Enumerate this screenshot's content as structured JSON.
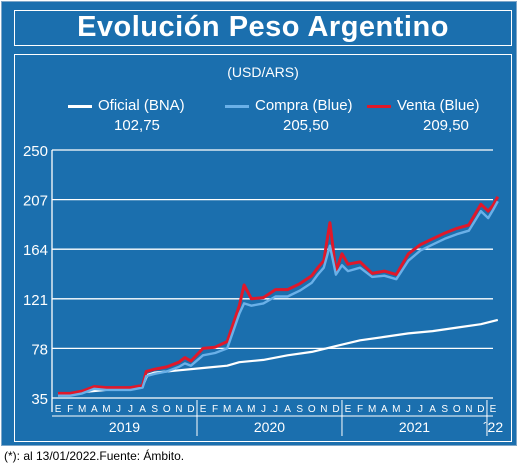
{
  "title": "Evolución Peso Argentino",
  "units": "(USD/ARS)",
  "footnote": "(*): al 13/01/2022.Fuente: Ámbito.",
  "colors": {
    "background": "#1b6fae",
    "oficial": "#ffffff",
    "compra": "#6ab0e8",
    "venta": "#e0182a",
    "grid": "#ffffff"
  },
  "legend": [
    {
      "name": "Oficial (BNA)",
      "value": "102,75",
      "color_key": "oficial"
    },
    {
      "name": "Compra (Blue)",
      "value": "205,50",
      "color_key": "compra"
    },
    {
      "name": "Venta (Blue)",
      "value": "209,50",
      "color_key": "venta"
    }
  ],
  "chart_data": {
    "type": "line",
    "ylim": [
      35,
      250
    ],
    "yticks": [
      35,
      78,
      121,
      164,
      207,
      250
    ],
    "grid": true,
    "legend_position": "top",
    "month_labels": [
      "E",
      "F",
      "M",
      "A",
      "M",
      "J",
      "J",
      "A",
      "S",
      "O",
      "N",
      "D",
      "E",
      "F",
      "M",
      "A",
      "M",
      "J",
      "J",
      "A",
      "S",
      "O",
      "N",
      "D",
      "E",
      "F",
      "M",
      "A",
      "M",
      "J",
      "J",
      "A",
      "S",
      "O",
      "N",
      "D",
      "E"
    ],
    "year_labels": [
      "2019",
      "2020",
      "2021",
      "´22"
    ],
    "x_unit": "months since Jan 2019",
    "series": [
      {
        "name": "Oficial (BNA)",
        "key": "oficial",
        "points": [
          [
            0,
            38
          ],
          [
            2,
            40
          ],
          [
            4,
            42
          ],
          [
            6,
            43
          ],
          [
            7,
            45
          ],
          [
            7.4,
            55
          ],
          [
            8,
            57
          ],
          [
            10,
            59
          ],
          [
            12,
            61
          ],
          [
            14,
            63
          ],
          [
            15,
            66
          ],
          [
            17,
            68
          ],
          [
            19,
            72
          ],
          [
            21,
            75
          ],
          [
            23,
            80
          ],
          [
            25,
            85
          ],
          [
            27,
            88
          ],
          [
            29,
            91
          ],
          [
            31,
            93
          ],
          [
            33,
            96
          ],
          [
            35,
            99
          ],
          [
            36.4,
            102.75
          ]
        ]
      },
      {
        "name": "Compra (Blue)",
        "key": "compra",
        "points": [
          [
            0,
            37
          ],
          [
            1,
            37
          ],
          [
            2,
            39
          ],
          [
            3,
            43
          ],
          [
            4,
            42
          ],
          [
            5,
            42
          ],
          [
            6,
            42
          ],
          [
            7,
            44
          ],
          [
            7.3,
            54
          ],
          [
            8,
            56
          ],
          [
            9,
            58
          ],
          [
            10,
            62
          ],
          [
            10.5,
            65
          ],
          [
            11,
            63
          ],
          [
            12,
            72
          ],
          [
            13,
            74
          ],
          [
            14,
            78
          ],
          [
            15,
            108
          ],
          [
            15.4,
            117
          ],
          [
            16,
            115
          ],
          [
            17,
            117
          ],
          [
            18,
            123
          ],
          [
            19,
            123
          ],
          [
            20,
            128
          ],
          [
            21,
            135
          ],
          [
            21.5,
            142
          ],
          [
            22,
            148
          ],
          [
            22.5,
            167
          ],
          [
            23,
            142
          ],
          [
            23.5,
            150
          ],
          [
            24,
            145
          ],
          [
            25,
            148
          ],
          [
            26,
            140
          ],
          [
            27,
            141
          ],
          [
            28,
            138
          ],
          [
            29,
            154
          ],
          [
            30,
            163
          ],
          [
            31,
            168
          ],
          [
            32,
            173
          ],
          [
            33,
            177
          ],
          [
            34,
            180
          ],
          [
            35,
            197
          ],
          [
            35.6,
            191
          ],
          [
            36,
            198
          ],
          [
            36.4,
            205.5
          ]
        ]
      },
      {
        "name": "Venta (Blue)",
        "key": "venta",
        "points": [
          [
            0,
            39
          ],
          [
            1,
            39
          ],
          [
            2,
            41
          ],
          [
            3,
            45
          ],
          [
            4,
            44
          ],
          [
            5,
            44
          ],
          [
            6,
            44
          ],
          [
            7,
            46
          ],
          [
            7.3,
            58
          ],
          [
            8,
            60
          ],
          [
            9,
            62
          ],
          [
            10,
            66
          ],
          [
            10.5,
            70
          ],
          [
            11,
            67
          ],
          [
            12,
            78
          ],
          [
            13,
            79
          ],
          [
            14,
            84
          ],
          [
            15,
            115
          ],
          [
            15.4,
            133
          ],
          [
            16,
            121
          ],
          [
            17,
            122
          ],
          [
            18,
            129
          ],
          [
            19,
            129
          ],
          [
            20,
            134
          ],
          [
            21,
            141
          ],
          [
            21.5,
            148
          ],
          [
            22,
            154
          ],
          [
            22.5,
            187
          ],
          [
            23,
            145
          ],
          [
            23.5,
            160
          ],
          [
            24,
            151
          ],
          [
            25,
            153
          ],
          [
            26,
            143
          ],
          [
            27,
            145
          ],
          [
            28,
            142
          ],
          [
            29,
            160
          ],
          [
            30,
            168
          ],
          [
            31,
            173
          ],
          [
            32,
            178
          ],
          [
            33,
            182
          ],
          [
            34,
            185
          ],
          [
            35,
            203
          ],
          [
            35.6,
            197
          ],
          [
            36,
            202
          ],
          [
            36.4,
            209.5
          ]
        ]
      }
    ]
  }
}
